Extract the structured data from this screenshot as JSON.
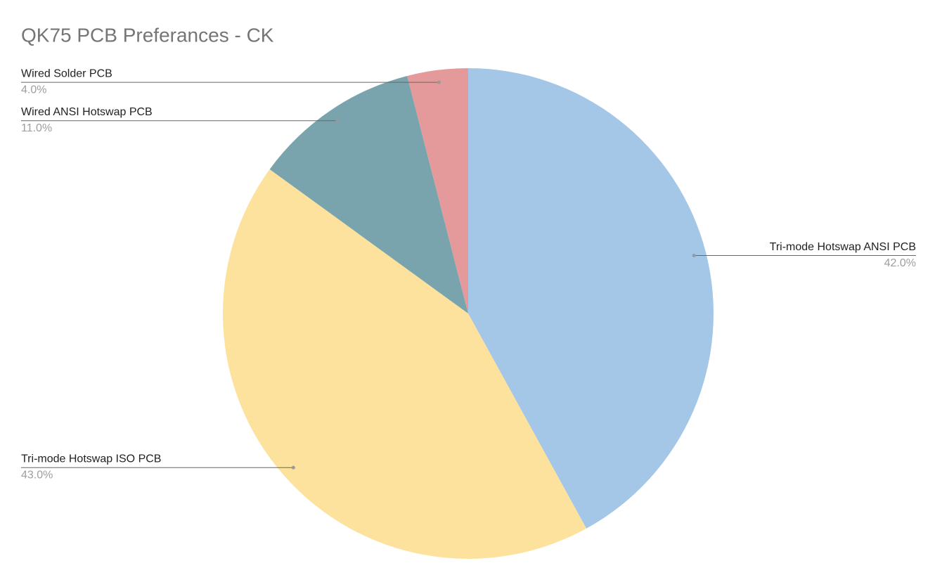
{
  "chart_data": {
    "type": "pie",
    "title": "QK75 PCB Preferances - CK",
    "categories": [
      "Tri-mode Hotswap ANSI PCB",
      "Tri-mode Hotswap ISO PCB",
      "Wired ANSI Hotswap PCB",
      "Wired Solder PCB"
    ],
    "values": [
      42,
      43,
      11,
      4
    ],
    "value_labels": [
      "42.0%",
      "43.0%",
      "11.0%",
      "4.0%"
    ],
    "colors": [
      "#a4c6e7",
      "#fce29d",
      "#7aa4ad",
      "#e49a9a"
    ]
  }
}
